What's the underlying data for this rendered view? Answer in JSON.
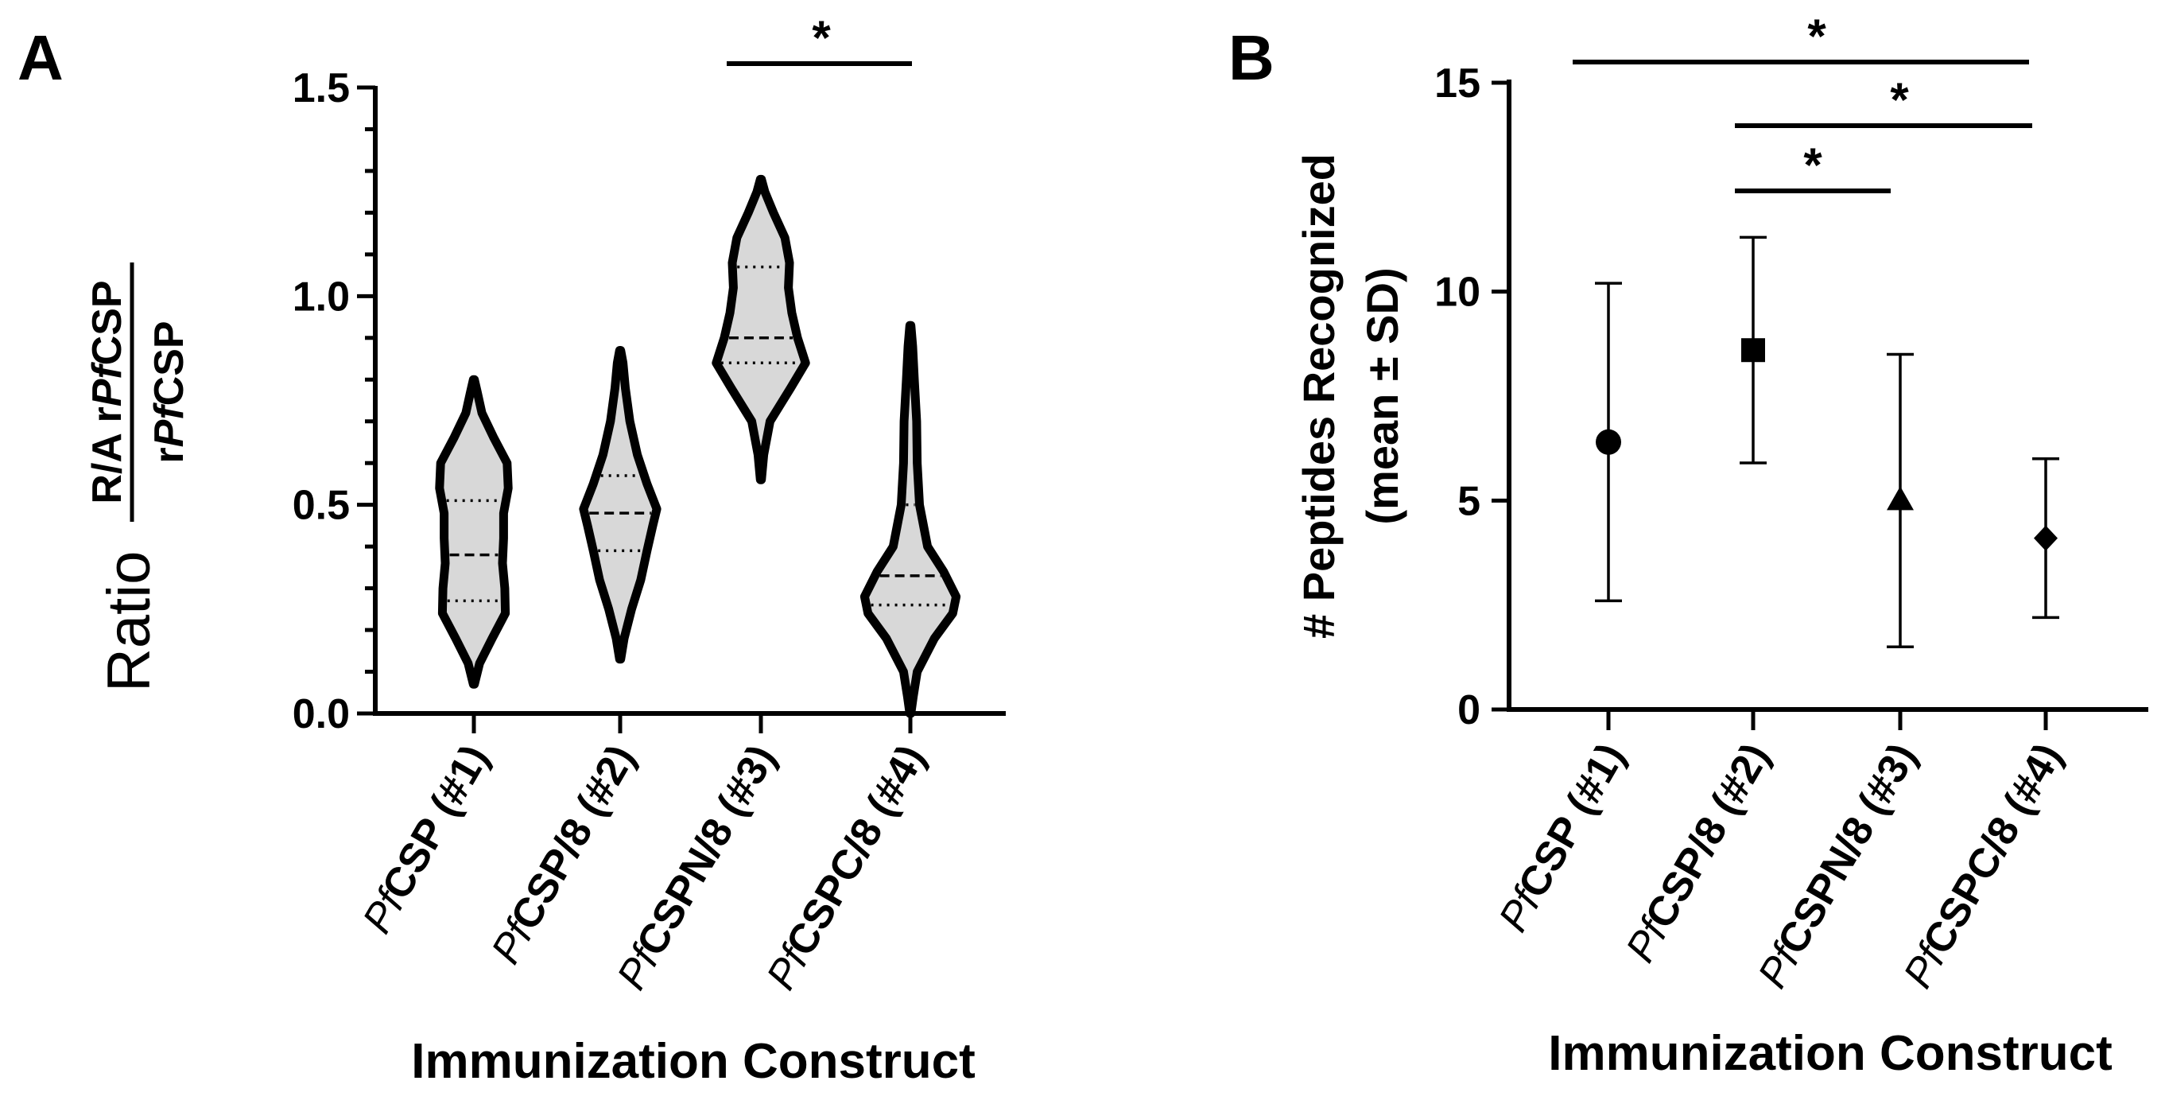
{
  "chart_data": [
    {
      "panel": "A",
      "type": "violin",
      "xlabel": "Immunization Construct",
      "ylabel": {
        "prefix": "Ratio",
        "numerator": [
          {
            "t": "R/A r",
            "it": false
          },
          {
            "t": "Pf",
            "it": true
          },
          {
            "t": "CSP",
            "it": false
          }
        ],
        "denominator": [
          {
            "t": "r",
            "it": false
          },
          {
            "t": "Pf",
            "it": true
          },
          {
            "t": "CSP",
            "it": false
          }
        ]
      },
      "ylim": [
        0,
        1.5
      ],
      "yticks": [
        {
          "v": 0.0,
          "label": "0.0"
        },
        {
          "v": 0.5,
          "label": "0.5"
        },
        {
          "v": 1.0,
          "label": "1.0"
        },
        {
          "v": 1.5,
          "label": "1.5"
        }
      ],
      "categories": [
        {
          "prefix": "Pf",
          "name": "CSP (#1)"
        },
        {
          "prefix": "Pf",
          "name": "CSP/8 (#2)"
        },
        {
          "prefix": "Pf",
          "name": "CSPN/8 (#3)"
        },
        {
          "prefix": "Pf",
          "name": "CSPC/8 (#4)"
        }
      ],
      "violins": [
        {
          "min": 0.07,
          "max": 0.8,
          "q1": 0.27,
          "median": 0.38,
          "q3": 0.51,
          "profile": [
            [
              0.07,
              0.01
            ],
            [
              0.12,
              0.1
            ],
            [
              0.18,
              0.32
            ],
            [
              0.24,
              0.55
            ],
            [
              0.3,
              0.54
            ],
            [
              0.36,
              0.5
            ],
            [
              0.42,
              0.52
            ],
            [
              0.48,
              0.52
            ],
            [
              0.54,
              0.6
            ],
            [
              0.6,
              0.58
            ],
            [
              0.66,
              0.35
            ],
            [
              0.72,
              0.14
            ],
            [
              0.77,
              0.06
            ],
            [
              0.8,
              0.01
            ]
          ]
        },
        {
          "min": 0.13,
          "max": 0.87,
          "q1": 0.39,
          "median": 0.48,
          "q3": 0.57,
          "profile": [
            [
              0.13,
              0.01
            ],
            [
              0.18,
              0.07
            ],
            [
              0.25,
              0.2
            ],
            [
              0.32,
              0.36
            ],
            [
              0.39,
              0.47
            ],
            [
              0.45,
              0.57
            ],
            [
              0.49,
              0.64
            ],
            [
              0.55,
              0.47
            ],
            [
              0.62,
              0.3
            ],
            [
              0.7,
              0.17
            ],
            [
              0.78,
              0.09
            ],
            [
              0.84,
              0.05
            ],
            [
              0.87,
              0.01
            ]
          ]
        },
        {
          "min": 0.56,
          "max": 1.28,
          "q1": 0.84,
          "median": 0.9,
          "q3": 1.07,
          "profile": [
            [
              0.56,
              0.01
            ],
            [
              0.62,
              0.05
            ],
            [
              0.7,
              0.16
            ],
            [
              0.78,
              0.52
            ],
            [
              0.84,
              0.78
            ],
            [
              0.9,
              0.64
            ],
            [
              0.96,
              0.54
            ],
            [
              1.02,
              0.48
            ],
            [
              1.08,
              0.5
            ],
            [
              1.14,
              0.42
            ],
            [
              1.2,
              0.22
            ],
            [
              1.25,
              0.07
            ],
            [
              1.28,
              0.01
            ]
          ]
        },
        {
          "min": 0.0,
          "max": 0.93,
          "q1": 0.26,
          "median": 0.33,
          "q3": 0.5,
          "profile": [
            [
              0.0,
              0.01
            ],
            [
              0.04,
              0.05
            ],
            [
              0.1,
              0.12
            ],
            [
              0.18,
              0.42
            ],
            [
              0.24,
              0.74
            ],
            [
              0.28,
              0.8
            ],
            [
              0.34,
              0.58
            ],
            [
              0.4,
              0.3
            ],
            [
              0.5,
              0.16
            ],
            [
              0.6,
              0.12
            ],
            [
              0.7,
              0.11
            ],
            [
              0.8,
              0.07
            ],
            [
              0.88,
              0.04
            ],
            [
              0.93,
              0.01
            ]
          ]
        }
      ],
      "significance": [
        {
          "from": 2,
          "to": 3,
          "label": "*"
        }
      ]
    },
    {
      "panel": "B",
      "type": "scatter-errorbar",
      "xlabel": "Immunization Construct",
      "ylabel": [
        "# Peptides Recognized",
        "(mean ± SD)"
      ],
      "ylim": [
        0,
        15
      ],
      "yticks": [
        {
          "v": 0,
          "label": "0"
        },
        {
          "v": 5,
          "label": "5"
        },
        {
          "v": 10,
          "label": "10"
        },
        {
          "v": 15,
          "label": "15"
        }
      ],
      "categories": [
        {
          "prefix": "Pf",
          "name": "CSP (#1)"
        },
        {
          "prefix": "Pf",
          "name": "CSP/8 (#2)"
        },
        {
          "prefix": "Pf",
          "name": "CSPN/8 (#3)"
        },
        {
          "prefix": "Pf",
          "name": "CSPC/8 (#4)"
        }
      ],
      "series": [
        {
          "mean": 6.4,
          "sd": 3.8,
          "marker": "circle"
        },
        {
          "mean": 8.6,
          "sd": 2.7,
          "marker": "square"
        },
        {
          "mean": 5.0,
          "sd": 3.5,
          "marker": "triangle"
        },
        {
          "mean": 4.1,
          "sd": 1.9,
          "marker": "diamond"
        }
      ],
      "significance": [
        {
          "from": 0,
          "to": 3,
          "label": "*"
        },
        {
          "from": 1,
          "to": 3,
          "label": "*"
        },
        {
          "from": 1,
          "to": 2,
          "label": "*"
        }
      ]
    }
  ],
  "panels": {
    "a_label": "A",
    "b_label": "B"
  }
}
